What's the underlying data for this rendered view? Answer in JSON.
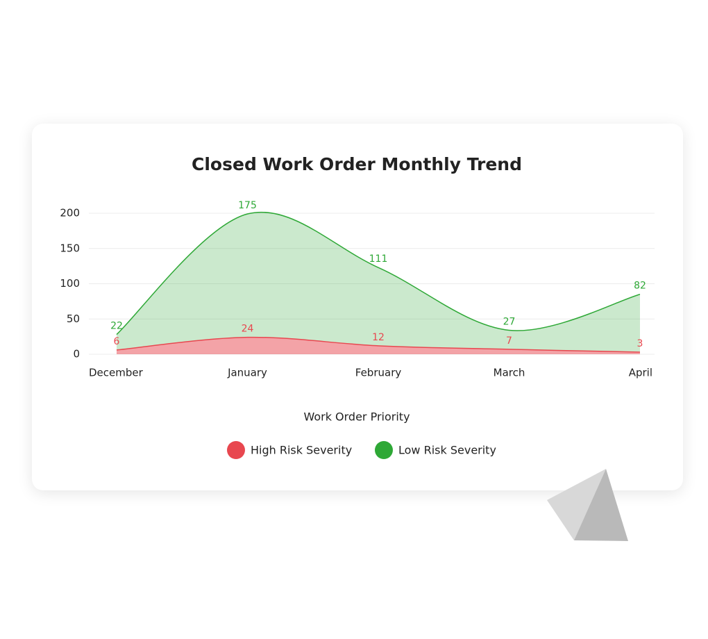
{
  "chart_data": {
    "type": "area",
    "stacked": true,
    "title": "Closed Work Order Monthly Trend",
    "legend_title": "Work Order Priority",
    "categories": [
      "December",
      "January",
      "February",
      "March",
      "April"
    ],
    "series": [
      {
        "name": "High Risk Severity",
        "color": "#e8474f",
        "values": [
          6,
          24,
          12,
          7,
          3
        ]
      },
      {
        "name": "Low Risk Severity",
        "color": "#2ea836",
        "values": [
          22,
          175,
          111,
          27,
          82
        ]
      }
    ],
    "ylim": [
      0,
      200
    ],
    "yticks": [
      0,
      50,
      100,
      150,
      200
    ],
    "grid": true
  }
}
